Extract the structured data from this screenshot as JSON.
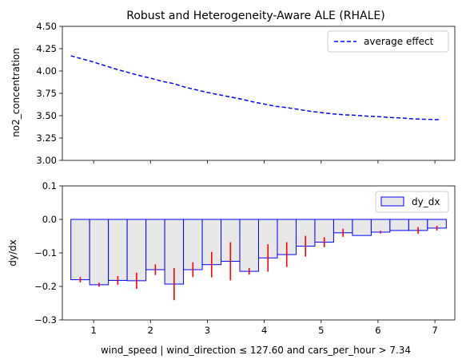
{
  "chart_data": [
    {
      "type": "line",
      "title": "Robust and Heterogeneity-Aware ALE (RHALE)",
      "xlabel": "",
      "ylabel": "no2_concentration",
      "xlim": [
        0.45,
        7.35
      ],
      "ylim": [
        3.0,
        4.5
      ],
      "yticks": [
        3.0,
        3.25,
        3.5,
        3.75,
        4.0,
        4.25,
        4.5
      ],
      "ytick_labels": [
        "3.00",
        "3.25",
        "3.50",
        "3.75",
        "4.00",
        "4.25",
        "4.50"
      ],
      "xticks": [
        1,
        2,
        3,
        4,
        5,
        6,
        7
      ],
      "grid": false,
      "legend_position": "top-right",
      "series": [
        {
          "name": "average effect",
          "color": "#0000ff",
          "style": "dashed",
          "x": [
            0.6,
            0.8,
            1.0,
            1.2,
            1.4,
            1.6,
            1.8,
            2.0,
            2.2,
            2.4,
            2.6,
            2.8,
            3.0,
            3.2,
            3.4,
            3.6,
            3.8,
            4.0,
            4.2,
            4.4,
            4.6,
            4.8,
            5.0,
            5.2,
            5.4,
            5.6,
            5.8,
            6.0,
            6.2,
            6.4,
            6.6,
            6.8,
            7.1
          ],
          "y": [
            4.17,
            4.135,
            4.1,
            4.06,
            4.02,
            3.985,
            3.95,
            3.92,
            3.885,
            3.86,
            3.82,
            3.79,
            3.76,
            3.735,
            3.71,
            3.685,
            3.655,
            3.63,
            3.605,
            3.59,
            3.57,
            3.55,
            3.535,
            3.52,
            3.51,
            3.505,
            3.495,
            3.49,
            3.48,
            3.475,
            3.465,
            3.46,
            3.455
          ]
        }
      ]
    },
    {
      "type": "bar",
      "title": "",
      "xlabel": "wind_speed | wind_direction ≤ 127.60 and cars_per_hour > 7.34",
      "ylabel": "dy/dx",
      "xlim": [
        0.45,
        7.35
      ],
      "ylim": [
        -0.3,
        0.1
      ],
      "yticks": [
        -0.3,
        -0.2,
        -0.1,
        0.0,
        0.1
      ],
      "ytick_labels": [
        "−0.3",
        "−0.2",
        "−0.1",
        "0.0",
        "0.1"
      ],
      "xticks": [
        1,
        2,
        3,
        4,
        5,
        6,
        7
      ],
      "xtick_labels": [
        "1",
        "2",
        "3",
        "4",
        "5",
        "6",
        "7"
      ],
      "grid": false,
      "legend_position": "top-right",
      "fill_color": "#e8e8e8",
      "edge_color": "#0000ff",
      "error_color": "#ff0000",
      "series": [
        {
          "name": "dy_dx",
          "bins": [
            {
              "x0": 0.6,
              "x1": 0.93,
              "value": -0.18,
              "err": 0.008
            },
            {
              "x0": 0.93,
              "x1": 1.26,
              "value": -0.195,
              "err": 0.006
            },
            {
              "x0": 1.26,
              "x1": 1.59,
              "value": -0.182,
              "err": 0.013
            },
            {
              "x0": 1.59,
              "x1": 1.92,
              "value": -0.183,
              "err": 0.024
            },
            {
              "x0": 1.92,
              "x1": 2.25,
              "value": -0.15,
              "err": 0.016
            },
            {
              "x0": 2.25,
              "x1": 2.58,
              "value": -0.193,
              "err": 0.048
            },
            {
              "x0": 2.58,
              "x1": 2.91,
              "value": -0.15,
              "err": 0.022
            },
            {
              "x0": 2.91,
              "x1": 3.24,
              "value": -0.135,
              "err": 0.038
            },
            {
              "x0": 3.24,
              "x1": 3.57,
              "value": -0.125,
              "err": 0.057
            },
            {
              "x0": 3.57,
              "x1": 3.9,
              "value": -0.155,
              "err": 0.01
            },
            {
              "x0": 3.9,
              "x1": 4.23,
              "value": -0.115,
              "err": 0.041
            },
            {
              "x0": 4.23,
              "x1": 4.56,
              "value": -0.105,
              "err": 0.037
            },
            {
              "x0": 4.56,
              "x1": 4.89,
              "value": -0.08,
              "err": 0.031
            },
            {
              "x0": 4.89,
              "x1": 5.22,
              "value": -0.068,
              "err": 0.015
            },
            {
              "x0": 5.22,
              "x1": 5.55,
              "value": -0.04,
              "err": 0.012
            },
            {
              "x0": 5.55,
              "x1": 5.88,
              "value": -0.048,
              "err": 0.0
            },
            {
              "x0": 5.88,
              "x1": 6.21,
              "value": -0.038,
              "err": 0.004
            },
            {
              "x0": 6.21,
              "x1": 6.54,
              "value": -0.033,
              "err": 0.0
            },
            {
              "x0": 6.54,
              "x1": 6.87,
              "value": -0.033,
              "err": 0.01
            },
            {
              "x0": 6.87,
              "x1": 7.2,
              "value": -0.026,
              "err": 0.007
            }
          ]
        }
      ]
    }
  ]
}
